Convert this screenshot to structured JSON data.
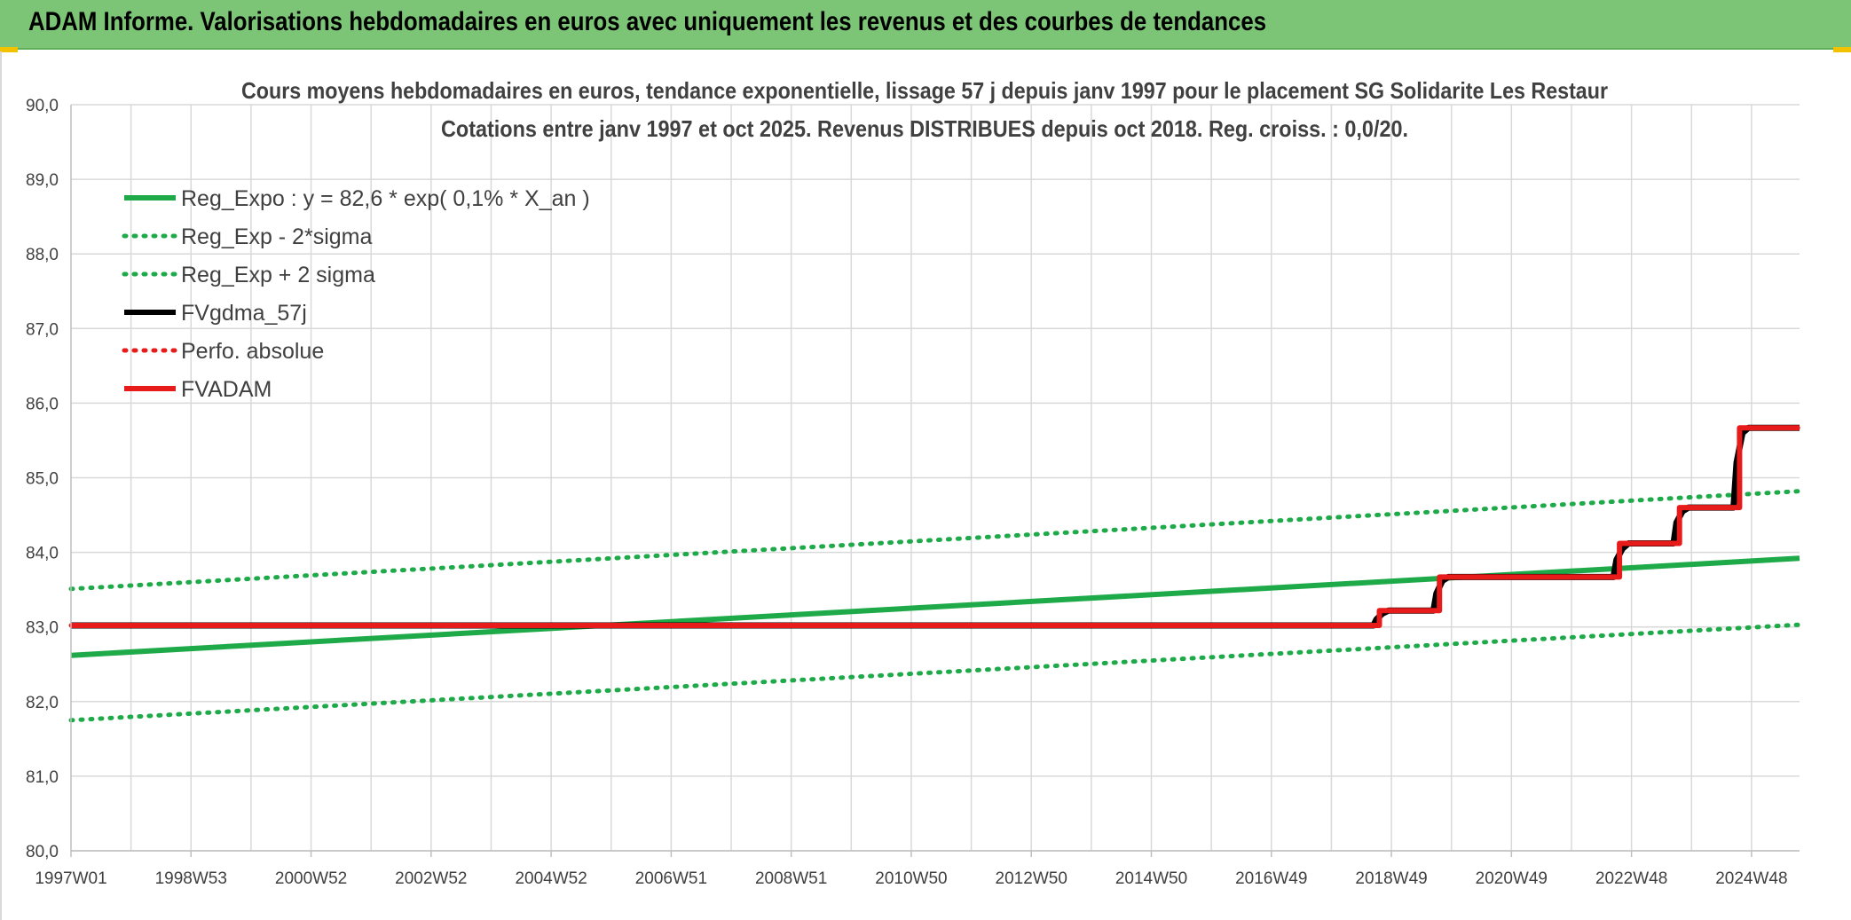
{
  "header": {
    "title": "ADAM Informe. Valorisations hebdomadaires en euros avec uniquement les revenus et des courbes de tendances"
  },
  "colors": {
    "banner": "#7cc576",
    "green": "#1faa4a",
    "red": "#e81b1b",
    "black": "#000000",
    "grid": "#d9d9d9"
  },
  "chart_data": {
    "type": "line",
    "title_lines": [
      "Cours moyens hebdomadaires en euros, tendance exponentielle, lissage 57 j depuis janv 1997 pour le placement SG Solidarite Les Restaur",
      "Cotations entre janv 1997 et oct 2025. Revenus DISTRIBUES depuis oct 2018. Reg. croiss. : 0,0/20."
    ],
    "xlabel": "",
    "ylabel": "",
    "ylim": [
      80,
      90
    ],
    "xlim": [
      1997.0,
      2025.8
    ],
    "yticks": [
      "80,0",
      "81,0",
      "82,0",
      "83,0",
      "84,0",
      "85,0",
      "86,0",
      "87,0",
      "88,0",
      "89,0",
      "90,0"
    ],
    "xtick_labels": [
      "1997W01",
      "1998W53",
      "2000W52",
      "2002W52",
      "2004W52",
      "2006W51",
      "2008W51",
      "2010W50",
      "2012W50",
      "2014W50",
      "2016W49",
      "2018W49",
      "2020W49",
      "2022W48",
      "2024W48"
    ],
    "xtick_positions": [
      1997.0,
      1999.0,
      2001.0,
      2003.0,
      2005.0,
      2007.0,
      2009.0,
      2011.0,
      2013.0,
      2015.0,
      2017.0,
      2019.0,
      2021.0,
      2023.0,
      2025.0
    ],
    "grid": true,
    "legend_position": "top-left",
    "series": [
      {
        "name": "Reg_Expo : y = 82,6 * exp( 0,1% *  X_an )",
        "style": "solid-thick",
        "color": "#1faa4a",
        "x": [
          1997.0,
          2025.8
        ],
        "y": [
          82.62,
          83.92
        ]
      },
      {
        "name": "Reg_Exp - 2*sigma",
        "style": "dotted",
        "color": "#1faa4a",
        "x": [
          1997.0,
          2025.8
        ],
        "y": [
          81.75,
          83.03
        ]
      },
      {
        "name": "Reg_Exp + 2 sigma",
        "style": "dotted",
        "color": "#1faa4a",
        "x": [
          1997.0,
          2025.8
        ],
        "y": [
          83.51,
          84.82
        ]
      },
      {
        "name": "FVgdma_57j",
        "style": "solid",
        "color": "#000000",
        "x": [
          1997.0,
          2018.7,
          2018.75,
          2018.85,
          2018.95,
          2019.7,
          2019.75,
          2019.85,
          2019.95,
          2022.7,
          2022.75,
          2022.85,
          2022.95,
          2023.7,
          2023.75,
          2023.85,
          2023.95,
          2024.7,
          2024.75,
          2024.85,
          2024.95,
          2025.8
        ],
        "y": [
          83.02,
          83.02,
          83.1,
          83.18,
          83.22,
          83.22,
          83.45,
          83.62,
          83.67,
          83.67,
          83.9,
          84.05,
          84.12,
          84.12,
          84.4,
          84.55,
          84.6,
          84.6,
          85.2,
          85.6,
          85.67,
          85.67
        ]
      },
      {
        "name": "Perfo. absolue",
        "style": "dotted",
        "color": "#e81b1b",
        "x": [
          1997.0,
          2018.8,
          2018.8,
          2019.8,
          2019.8,
          2022.8,
          2022.8,
          2023.8,
          2023.8,
          2024.8,
          2024.8,
          2025.8
        ],
        "y": [
          83.02,
          83.02,
          83.22,
          83.22,
          83.67,
          83.67,
          84.12,
          84.12,
          84.6,
          84.6,
          85.67,
          85.67
        ]
      },
      {
        "name": "FVADAM",
        "style": "solid-thick",
        "color": "#e81b1b",
        "x": [
          1997.0,
          2018.8,
          2018.8,
          2019.8,
          2019.8,
          2022.8,
          2022.8,
          2023.8,
          2023.8,
          2024.8,
          2024.8,
          2025.8
        ],
        "y": [
          83.02,
          83.02,
          83.22,
          83.22,
          83.67,
          83.67,
          84.12,
          84.12,
          84.6,
          84.6,
          85.67,
          85.67
        ]
      }
    ]
  }
}
